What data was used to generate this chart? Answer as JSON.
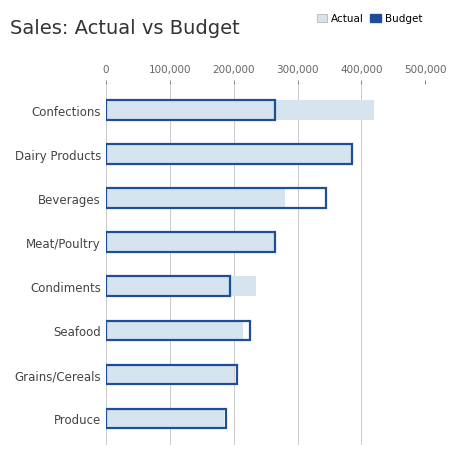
{
  "title": "Sales: Actual vs Budget",
  "categories": [
    "Confections",
    "Dairy Products",
    "Beverages",
    "Meat/Poultry",
    "Condiments",
    "Seafood",
    "Grains/Cereals",
    "Produce"
  ],
  "actual": [
    420000,
    385000,
    280000,
    265000,
    235000,
    215000,
    200000,
    185000
  ],
  "budget": [
    265000,
    385000,
    345000,
    265000,
    195000,
    225000,
    205000,
    188000
  ],
  "actual_color": "#d6e4f0",
  "budget_edge_color": "#1f4e96",
  "xlim": [
    0,
    500000
  ],
  "xticks": [
    0,
    100000,
    200000,
    300000,
    400000,
    500000
  ],
  "xtick_labels": [
    "0",
    "100,000",
    "200,000",
    "300,000",
    "400,000",
    "500,000"
  ],
  "grid_color": "#cccccc",
  "background_color": "#ffffff",
  "title_fontsize": 14,
  "tick_fontsize": 7.5,
  "label_fontsize": 8.5,
  "bar_height": 0.45,
  "legend_actual_color": "#d6e4f0",
  "legend_budget_color": "#1f4e96"
}
